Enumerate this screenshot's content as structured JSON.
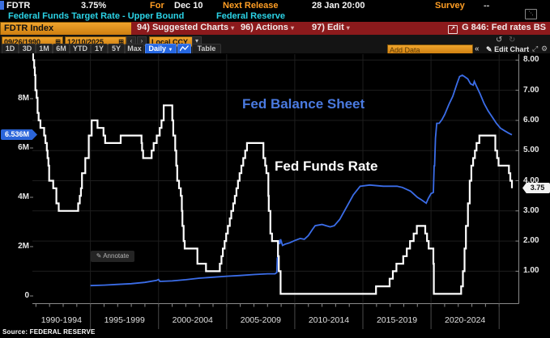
{
  "titlebar": {
    "ticker": "FDTR",
    "last_value": "3.75%",
    "for_label": "For",
    "for_value": "Dec 10",
    "next_release_label": "Next Release",
    "next_release_value": "28 Jan 20:00",
    "survey_label": "Survey",
    "survey_value": "--",
    "description": "Federal Funds Target Rate - Upper Bound",
    "issuer": "Federal Reserve"
  },
  "menubar": {
    "security_field": "FDTR Index",
    "suggested_charts": "94) Suggested Charts",
    "actions": "96) Actions",
    "edit": "97) Edit",
    "chart_id_title": "G 846: Fed rates BS"
  },
  "toolbar": {
    "date_from": "09/26/1990",
    "date_to": "12/10/2025",
    "currency": "Local CCY",
    "periods": [
      "1D",
      "3D",
      "1M",
      "6M",
      "YTD",
      "1Y",
      "5Y",
      "Max"
    ],
    "frequency": "Daily",
    "table_label": "Table",
    "add_data_placeholder": "Add Data",
    "edit_chart_label": "Edit Chart"
  },
  "chart": {
    "balance_label": "Fed Balance Sheet",
    "rate_label": "Fed Funds Rate",
    "left_badge": "6.536M",
    "right_badge": "3.75",
    "annotate_label": "Annotate",
    "source": "Source: FEDERAL RESERVE",
    "colors": {
      "balance_line": "#3b6de8",
      "rate_line": "#ffffff",
      "balance_label_text": "#4a7ae0",
      "left_badge_bg": "#2b65d9",
      "grid": "#1e1e1e",
      "axis": "#8a8a8a",
      "amber": "#ff9e24",
      "cyan": "#2bd3e6",
      "menubar_red": "#8c1a1c"
    }
  },
  "chart_data": {
    "type": "line",
    "title": "G 846: Fed rates BS",
    "x_range": [
      1990.74,
      2025.94
    ],
    "x_bin_labels": [
      "1990-1994",
      "1995-1999",
      "2000-2004",
      "2005-2009",
      "2010-2014",
      "2015-2019",
      "2020-2024"
    ],
    "x_gridline_years": [
      1995,
      2000,
      2005,
      2010,
      2015,
      2020,
      2025
    ],
    "left_axis": {
      "ticks": [
        0,
        2,
        4,
        6,
        8
      ],
      "labels": [
        "0",
        "2M",
        "4M",
        "6M",
        "8M"
      ],
      "range": [
        0,
        9.8
      ],
      "last_value_label": "6.536M"
    },
    "right_axis": {
      "ticks": [
        1,
        2,
        3,
        4,
        5,
        6,
        7,
        8
      ],
      "labels": [
        "1.00",
        "2.00",
        "3.00",
        "4.00",
        "5.00",
        "6.00",
        "7.00",
        "8.00"
      ],
      "range": [
        0,
        8.2
      ],
      "last_value_label": "3.75"
    },
    "series": [
      {
        "name": "Fed Balance Sheet",
        "axis": "left",
        "interpolation": "linear",
        "color": "#3b6de8",
        "points": [
          [
            1995.0,
            0.42
          ],
          [
            1996.0,
            0.44
          ],
          [
            1997.0,
            0.47
          ],
          [
            1998.0,
            0.5
          ],
          [
            1999.0,
            0.55
          ],
          [
            1999.85,
            0.63
          ],
          [
            2000.0,
            0.67
          ],
          [
            2000.1,
            0.59
          ],
          [
            2001.0,
            0.61
          ],
          [
            2002.0,
            0.66
          ],
          [
            2003.0,
            0.72
          ],
          [
            2004.0,
            0.76
          ],
          [
            2005.0,
            0.8
          ],
          [
            2006.0,
            0.83
          ],
          [
            2007.0,
            0.87
          ],
          [
            2008.0,
            0.9
          ],
          [
            2008.55,
            0.9
          ],
          [
            2008.68,
            0.95
          ],
          [
            2008.72,
            1.55
          ],
          [
            2008.74,
            1.45
          ],
          [
            2008.78,
            2.1
          ],
          [
            2008.85,
            2.2
          ],
          [
            2008.9,
            2.1
          ],
          [
            2008.96,
            2.3
          ],
          [
            2009.1,
            2.05
          ],
          [
            2009.3,
            2.1
          ],
          [
            2009.6,
            2.15
          ],
          [
            2010.0,
            2.25
          ],
          [
            2010.4,
            2.33
          ],
          [
            2010.7,
            2.3
          ],
          [
            2011.0,
            2.45
          ],
          [
            2011.3,
            2.7
          ],
          [
            2011.5,
            2.85
          ],
          [
            2012.0,
            2.9
          ],
          [
            2012.3,
            2.85
          ],
          [
            2012.6,
            2.8
          ],
          [
            2012.9,
            2.85
          ],
          [
            2013.3,
            3.1
          ],
          [
            2013.8,
            3.6
          ],
          [
            2014.3,
            4.1
          ],
          [
            2014.8,
            4.45
          ],
          [
            2015.5,
            4.5
          ],
          [
            2016.5,
            4.45
          ],
          [
            2017.5,
            4.45
          ],
          [
            2017.9,
            4.4
          ],
          [
            2018.5,
            4.25
          ],
          [
            2019.0,
            4.0
          ],
          [
            2019.3,
            3.9
          ],
          [
            2019.65,
            3.76
          ],
          [
            2019.8,
            3.95
          ],
          [
            2020.0,
            4.15
          ],
          [
            2020.17,
            4.2
          ],
          [
            2020.23,
            5.3
          ],
          [
            2020.26,
            5.25
          ],
          [
            2020.33,
            6.4
          ],
          [
            2020.42,
            7.0
          ],
          [
            2020.6,
            7.0
          ],
          [
            2020.8,
            7.15
          ],
          [
            2021.0,
            7.35
          ],
          [
            2021.3,
            7.75
          ],
          [
            2021.6,
            8.1
          ],
          [
            2021.9,
            8.6
          ],
          [
            2022.1,
            8.9
          ],
          [
            2022.3,
            8.95
          ],
          [
            2022.45,
            8.9
          ],
          [
            2022.7,
            8.8
          ],
          [
            2022.9,
            8.6
          ],
          [
            2023.1,
            8.55
          ],
          [
            2023.18,
            8.7
          ],
          [
            2023.3,
            8.55
          ],
          [
            2023.6,
            8.2
          ],
          [
            2023.9,
            7.8
          ],
          [
            2024.2,
            7.5
          ],
          [
            2024.5,
            7.25
          ],
          [
            2024.8,
            7.0
          ],
          [
            2025.1,
            6.8
          ],
          [
            2025.4,
            6.7
          ],
          [
            2025.7,
            6.6
          ],
          [
            2025.94,
            6.536
          ]
        ]
      },
      {
        "name": "Fed Funds Rate",
        "axis": "right",
        "interpolation": "step",
        "color": "#ffffff",
        "points": [
          [
            1990.74,
            8.25
          ],
          [
            1990.79,
            8
          ],
          [
            1990.87,
            7.75
          ],
          [
            1990.92,
            7.5
          ],
          [
            1990.96,
            7
          ],
          [
            1991.05,
            6.75
          ],
          [
            1991.12,
            6.25
          ],
          [
            1991.2,
            6
          ],
          [
            1991.33,
            5.75
          ],
          [
            1991.6,
            5.5
          ],
          [
            1991.7,
            5.25
          ],
          [
            1991.8,
            5
          ],
          [
            1991.85,
            4.75
          ],
          [
            1991.92,
            4.5
          ],
          [
            1991.97,
            4
          ],
          [
            1992.27,
            3.75
          ],
          [
            1992.5,
            3.25
          ],
          [
            1992.67,
            3
          ],
          [
            1994.1,
            3.25
          ],
          [
            1994.22,
            3.5
          ],
          [
            1994.3,
            3.75
          ],
          [
            1994.38,
            4.25
          ],
          [
            1994.62,
            4.75
          ],
          [
            1994.88,
            5.5
          ],
          [
            1995.09,
            6
          ],
          [
            1995.52,
            5.75
          ],
          [
            1995.96,
            5.5
          ],
          [
            1996.08,
            5.25
          ],
          [
            1997.22,
            5.5
          ],
          [
            1998.75,
            5.25
          ],
          [
            1998.79,
            5
          ],
          [
            1998.87,
            4.75
          ],
          [
            1999.49,
            5
          ],
          [
            1999.64,
            5.25
          ],
          [
            1999.87,
            5.5
          ],
          [
            2000.09,
            5.75
          ],
          [
            2000.22,
            6
          ],
          [
            2000.38,
            6.5
          ],
          [
            2001.01,
            6
          ],
          [
            2001.08,
            5.5
          ],
          [
            2001.22,
            5
          ],
          [
            2001.3,
            4.5
          ],
          [
            2001.37,
            4
          ],
          [
            2001.5,
            3.75
          ],
          [
            2001.63,
            3.5
          ],
          [
            2001.71,
            3
          ],
          [
            2001.75,
            2.5
          ],
          [
            2001.84,
            2
          ],
          [
            2001.92,
            1.75
          ],
          [
            2002.85,
            1.25
          ],
          [
            2003.48,
            1
          ],
          [
            2004.5,
            1.25
          ],
          [
            2004.62,
            1.5
          ],
          [
            2004.72,
            1.75
          ],
          [
            2004.85,
            2
          ],
          [
            2004.96,
            2.25
          ],
          [
            2005.09,
            2.5
          ],
          [
            2005.23,
            2.75
          ],
          [
            2005.34,
            3
          ],
          [
            2005.48,
            3.25
          ],
          [
            2005.6,
            3.5
          ],
          [
            2005.72,
            3.75
          ],
          [
            2005.83,
            4
          ],
          [
            2005.95,
            4.25
          ],
          [
            2006.08,
            4.5
          ],
          [
            2006.22,
            4.75
          ],
          [
            2006.36,
            5
          ],
          [
            2006.49,
            5.25
          ],
          [
            2007.7,
            4.75
          ],
          [
            2007.83,
            4.5
          ],
          [
            2007.92,
            4.25
          ],
          [
            2008.06,
            3.5
          ],
          [
            2008.09,
            3
          ],
          [
            2008.21,
            2.25
          ],
          [
            2008.33,
            2
          ],
          [
            2008.77,
            1.5
          ],
          [
            2008.83,
            1
          ],
          [
            2008.96,
            0.25
          ],
          [
            2015.96,
            0.5
          ],
          [
            2016.96,
            0.75
          ],
          [
            2017.2,
            1
          ],
          [
            2017.46,
            1.25
          ],
          [
            2017.96,
            1.5
          ],
          [
            2018.22,
            1.75
          ],
          [
            2018.46,
            2
          ],
          [
            2018.73,
            2.25
          ],
          [
            2018.96,
            2.5
          ],
          [
            2019.58,
            2.25
          ],
          [
            2019.71,
            2
          ],
          [
            2019.83,
            1.75
          ],
          [
            2020.17,
            1.25
          ],
          [
            2020.21,
            0.25
          ],
          [
            2022.21,
            0.5
          ],
          [
            2022.34,
            1
          ],
          [
            2022.46,
            1.75
          ],
          [
            2022.56,
            2.5
          ],
          [
            2022.71,
            3.25
          ],
          [
            2022.84,
            4
          ],
          [
            2022.96,
            4.5
          ],
          [
            2023.09,
            4.75
          ],
          [
            2023.22,
            5
          ],
          [
            2023.34,
            5.25
          ],
          [
            2023.55,
            5.5
          ],
          [
            2024.72,
            5
          ],
          [
            2024.85,
            4.75
          ],
          [
            2024.96,
            4.5
          ],
          [
            2025.72,
            4.25
          ],
          [
            2025.82,
            4
          ],
          [
            2025.94,
            3.75
          ]
        ]
      }
    ]
  }
}
